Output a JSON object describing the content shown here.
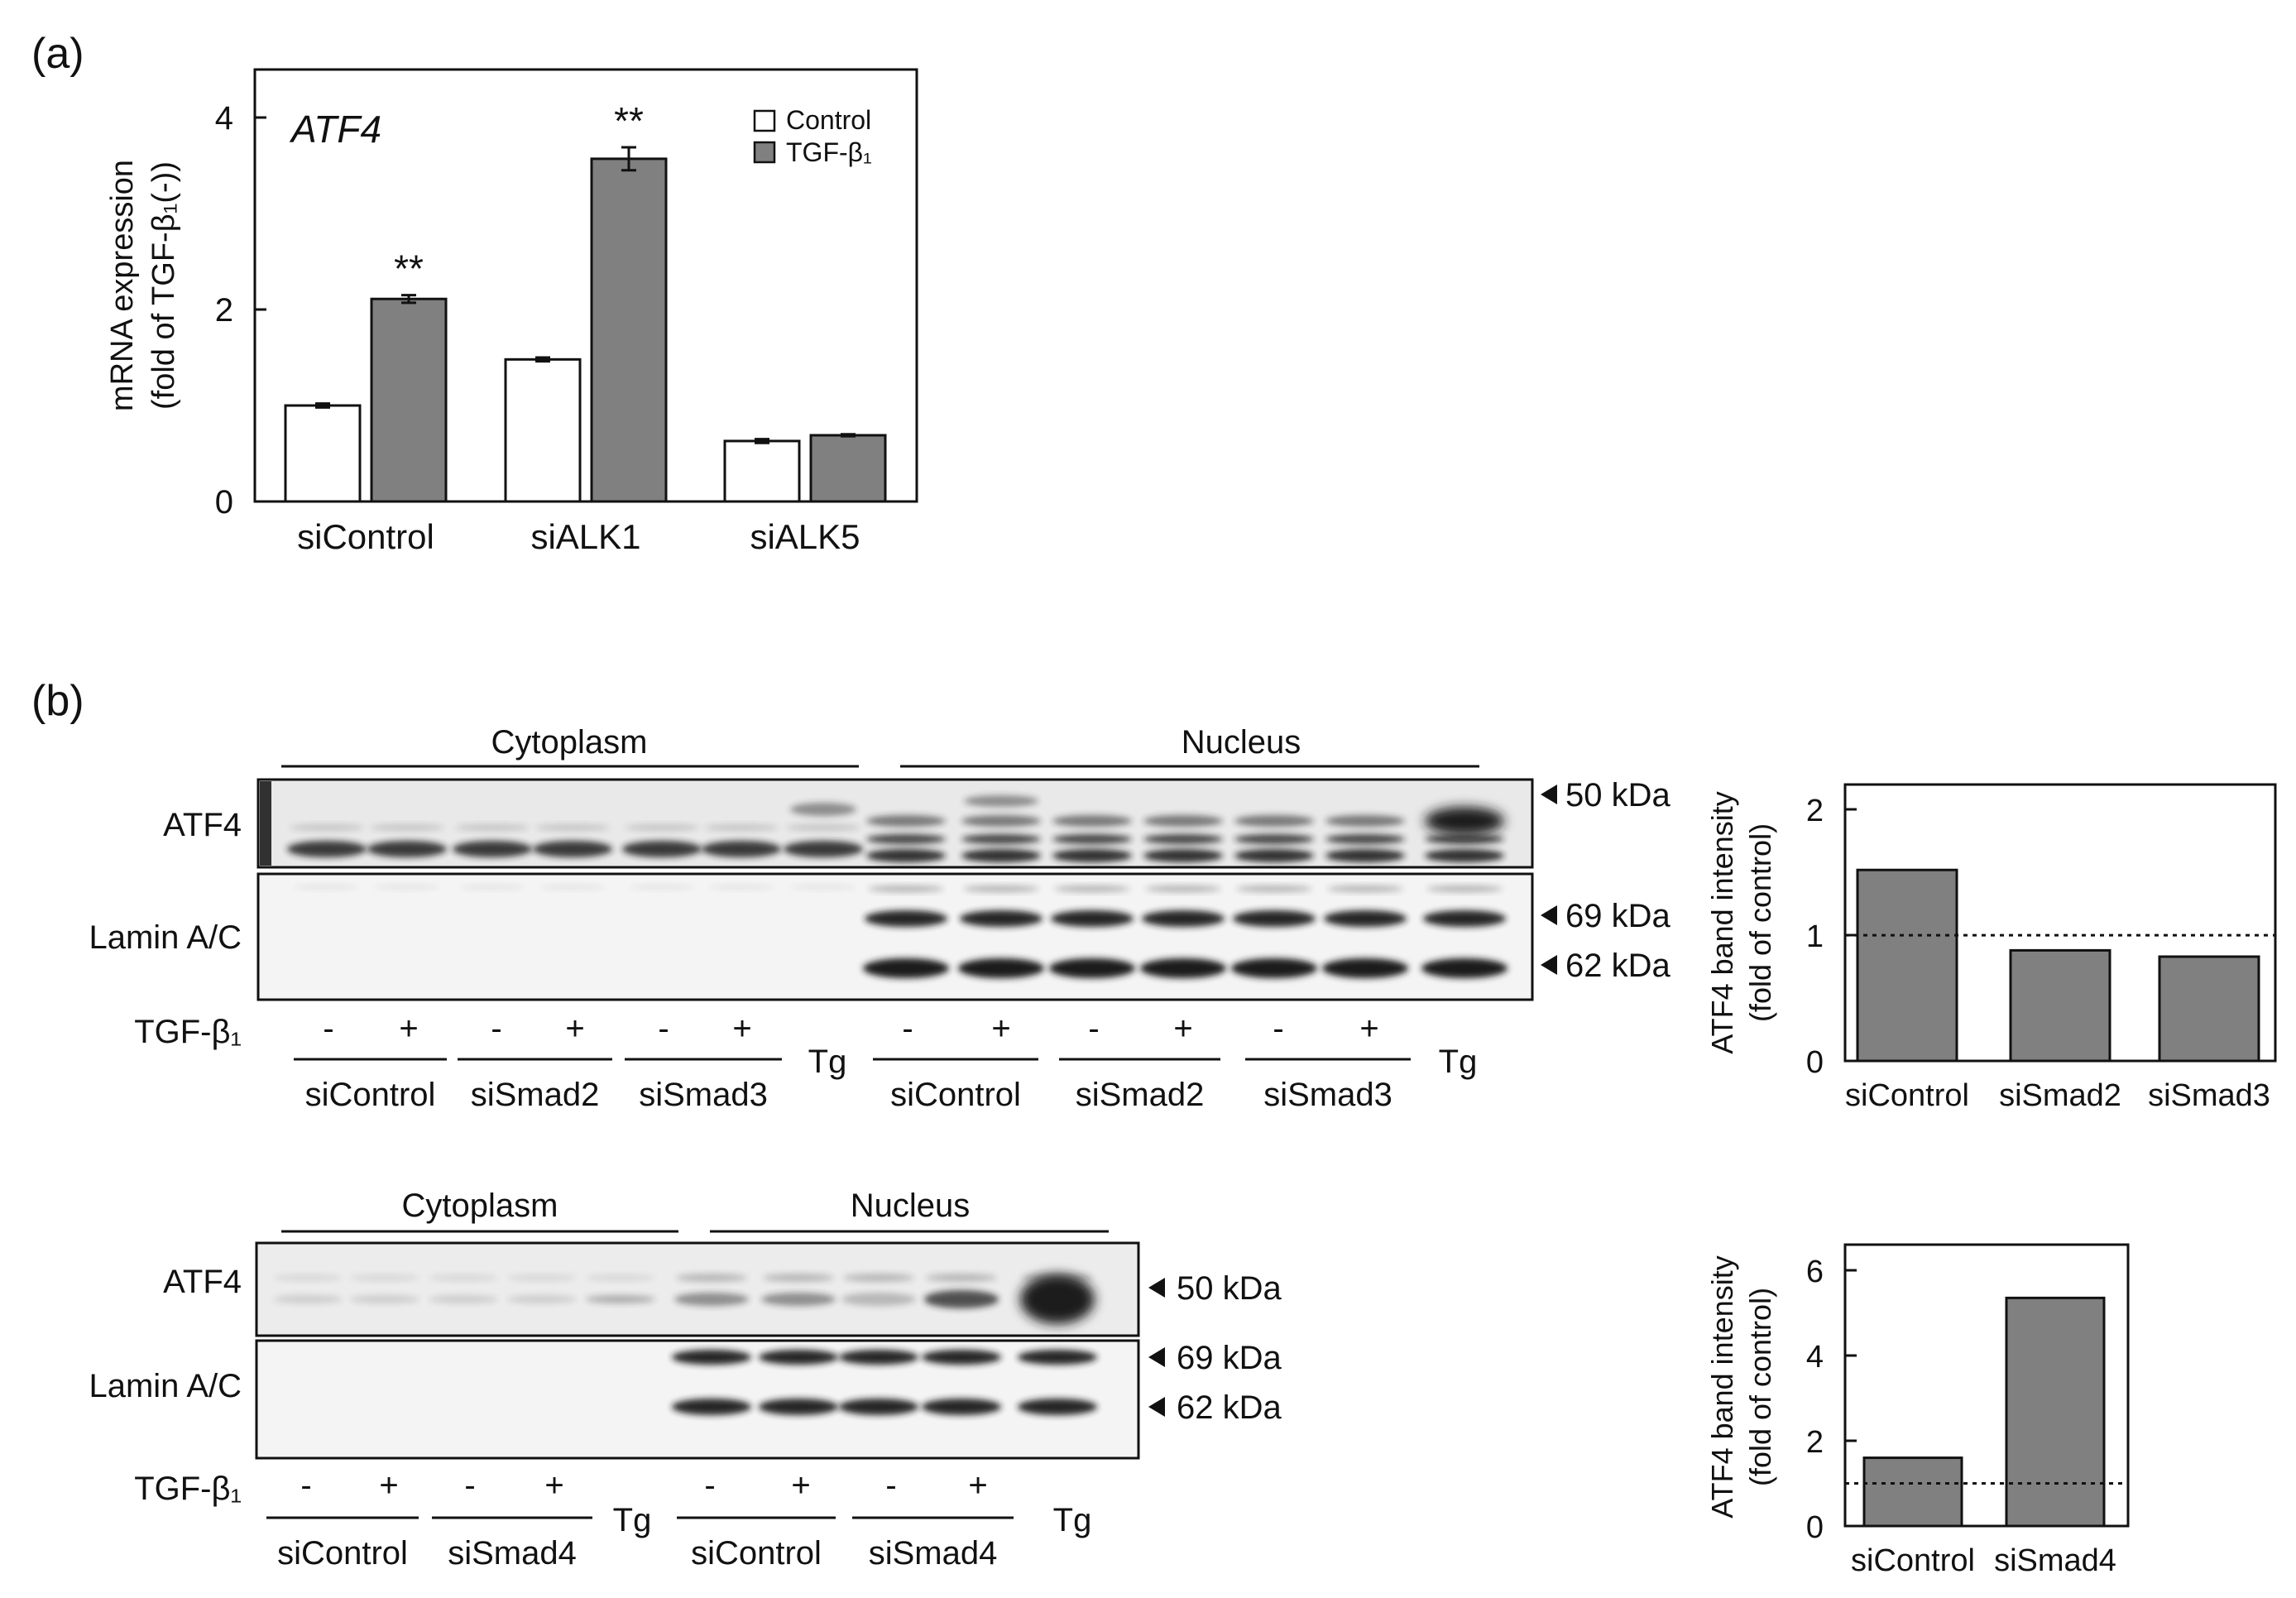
{
  "panel_labels": {
    "a": "(a)",
    "b": "(b)"
  },
  "colors": {
    "control": "#ffffff",
    "treated": "#808080",
    "axis": "#111111",
    "blot_bg": "#e9e9e9",
    "band": "#1a1a1a"
  },
  "chart_data": [
    {
      "id": "atf4_mrna",
      "type": "bar",
      "title": "ATF4",
      "ylabel_line1": "mRNA expression",
      "ylabel_line2": "(fold of TGF-β₁(-))",
      "ylim": [
        0,
        4
      ],
      "yticks": [
        "0",
        "2",
        "4"
      ],
      "categories": [
        "siControl",
        "siALK1",
        "siALK5"
      ],
      "series": [
        {
          "name": "Control",
          "values": [
            1.0,
            1.48,
            0.63
          ],
          "errors": [
            0.02,
            0.02,
            0.02
          ]
        },
        {
          "name": "TGF-β₁",
          "values": [
            2.11,
            3.57,
            0.69
          ],
          "errors": [
            0.04,
            0.12,
            0.01
          ]
        }
      ],
      "significance": [
        {
          "category": "siControl",
          "series": "TGF-β₁",
          "label": "**"
        },
        {
          "category": "siALK1",
          "series": "TGF-β₁",
          "label": "**"
        }
      ],
      "legend_position": "top-right"
    },
    {
      "id": "atf4_band_smad23",
      "type": "bar",
      "ylabel_line1": "ATF4 band intensity",
      "ylabel_line2": "(fold of control)",
      "ylim": [
        0,
        2.2
      ],
      "yticks": [
        "0",
        "1",
        "2"
      ],
      "categories": [
        "siControl",
        "siSmad2",
        "siSmad3"
      ],
      "values": [
        1.52,
        0.88,
        0.83
      ],
      "reference_line": 1
    },
    {
      "id": "atf4_band_smad4",
      "type": "bar",
      "ylabel_line1": "ATF4 band intensity",
      "ylabel_line2": "(fold of control)",
      "ylim": [
        0,
        6.6
      ],
      "yticks": [
        "0",
        "2",
        "4",
        "6"
      ],
      "categories": [
        "siControl",
        "siSmad4"
      ],
      "values": [
        1.6,
        5.35
      ],
      "reference_line": 1
    }
  ],
  "blots": [
    {
      "id": "blot_smad23",
      "fractions": [
        "Cytoplasm",
        "Nucleus"
      ],
      "rows": [
        "ATF4",
        "Lamin A/C"
      ],
      "markers": [
        "50 kDa",
        "69 kDa",
        "62 kDa"
      ],
      "treatment_label": "TGF-β₁",
      "signs": [
        "-",
        "+",
        "-",
        "+",
        "-",
        "+",
        "-",
        "+",
        "-",
        "+",
        "-",
        "+"
      ],
      "groups": [
        "siControl",
        "siSmad2",
        "siSmad3",
        "siControl",
        "siSmad2",
        "siSmad3"
      ],
      "tg_label": "Tg"
    },
    {
      "id": "blot_smad4",
      "fractions": [
        "Cytoplasm",
        "Nucleus"
      ],
      "rows": [
        "ATF4",
        "Lamin A/C"
      ],
      "markers": [
        "50 kDa",
        "69 kDa",
        "62 kDa"
      ],
      "treatment_label": "TGF-β₁",
      "signs": [
        "-",
        "+",
        "-",
        "+",
        "-",
        "+",
        "-",
        "+"
      ],
      "groups": [
        "siControl",
        "siSmad4",
        "siControl",
        "siSmad4"
      ],
      "tg_label": "Tg"
    }
  ]
}
